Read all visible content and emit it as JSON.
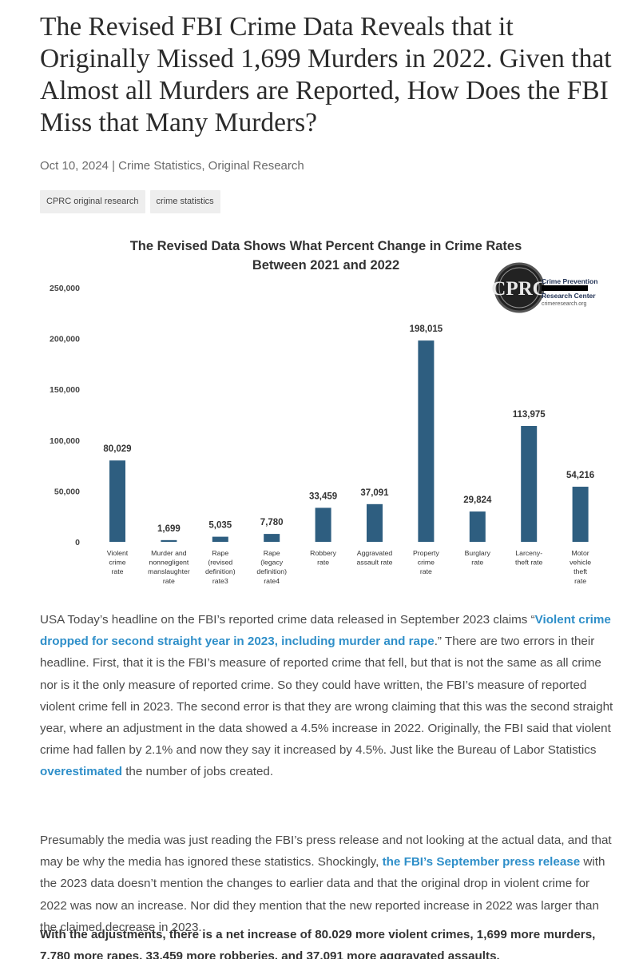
{
  "article": {
    "title": "The Revised FBI Crime Data Reveals that it Originally Missed 1,699 Murders in 2022. Given that Almost all Murders are Reported, How Does the FBI Miss that Many Murders?",
    "date": "Oct 10, 2024",
    "separator": "|",
    "categories": "Crime Statistics, Original Research",
    "tags": [
      "CPRC original research",
      "crime statistics"
    ]
  },
  "logo": {
    "mark": "CPRC",
    "line1": "Crime Prevention",
    "line2": "Research Center",
    "url": "crimeresearch.org"
  },
  "chart_data": {
    "type": "bar",
    "title": "The Revised Data Shows What Percent Change in Crime Rates Between 2021 and 2022",
    "title_lines": [
      "The Revised Data Shows What Percent Change in Crime Rates",
      "Between 2021 and 2022"
    ],
    "categories": [
      [
        "Violent",
        "crime",
        "rate"
      ],
      [
        "Murder and",
        "nonnegligent",
        "manslaughter",
        "rate"
      ],
      [
        "Rape",
        "(revised",
        "definition)",
        "rate3"
      ],
      [
        "Rape",
        "(legacy",
        "definition)",
        "rate4"
      ],
      [
        "Robbery",
        "rate"
      ],
      [
        "Aggravated",
        "assault rate"
      ],
      [
        "Property",
        "crime",
        "rate"
      ],
      [
        "Burglary",
        "rate"
      ],
      [
        "Larceny-",
        "theft rate"
      ],
      [
        "Motor",
        "vehicle",
        "theft",
        "rate"
      ]
    ],
    "values": [
      80029,
      1699,
      5035,
      7780,
      33459,
      37091,
      198015,
      29824,
      113975,
      54216
    ],
    "value_labels": [
      "80,029",
      "1,699",
      "5,035",
      "7,780",
      "33,459",
      "37,091",
      "198,015",
      "29,824",
      "113,975",
      "54,216"
    ],
    "ylim": [
      0,
      250000
    ],
    "yticks": [
      0,
      50000,
      100000,
      150000,
      200000,
      250000
    ],
    "ytick_labels": [
      "0",
      "50,000",
      "100,000",
      "150,000",
      "200,000",
      "250,000"
    ],
    "grid": false,
    "legend": "none",
    "bar_color": "#2e5e80"
  },
  "body": {
    "p1": {
      "t1": "USA Today’s headline on the FBI’s reported crime data released in September 2023 claims “",
      "link1": "Violent crime dropped for second straight year in 2023, including murder and rape",
      "t2": ".” There are two errors in their headline. First, that it is the FBI’s measure of reported crime that fell, but that is not the same as all crime nor is it the only measure of reported crime. So they could have written, the FBI’s measure of reported violent crime fell in 2023. The second error is that they are wrong claiming that this was the second straight year, where an adjustment in the data showed a 4.5% increase in 2022. Originally, the FBI said that violent crime had fallen by 2.1% and now they say it increased by 4.5%. Just like the Bureau of Labor Statistics ",
      "link2": "overestimated",
      "t3": " the number of jobs created."
    },
    "p2": {
      "t1": "Presumably the media was just reading the FBI’s press release and not looking at the actual data, and that may be why the media has ignored these statistics. Shockingly, ",
      "link1": "the FBI’s September press release",
      "t2": " with the 2023 data doesn’t mention the changes to earlier data and that the original drop in violent crime for 2022 was now an increase. Nor did they mention that the new reported increase in 2022 was larger than the claimed decrease in 2023."
    },
    "p3": "With the adjustments, there is a net increase of 80.029 more violent crimes, 1,699 more murders, 7,780 more rapes, 33,459 more robberies, and 37,091 more aggravated assaults."
  }
}
